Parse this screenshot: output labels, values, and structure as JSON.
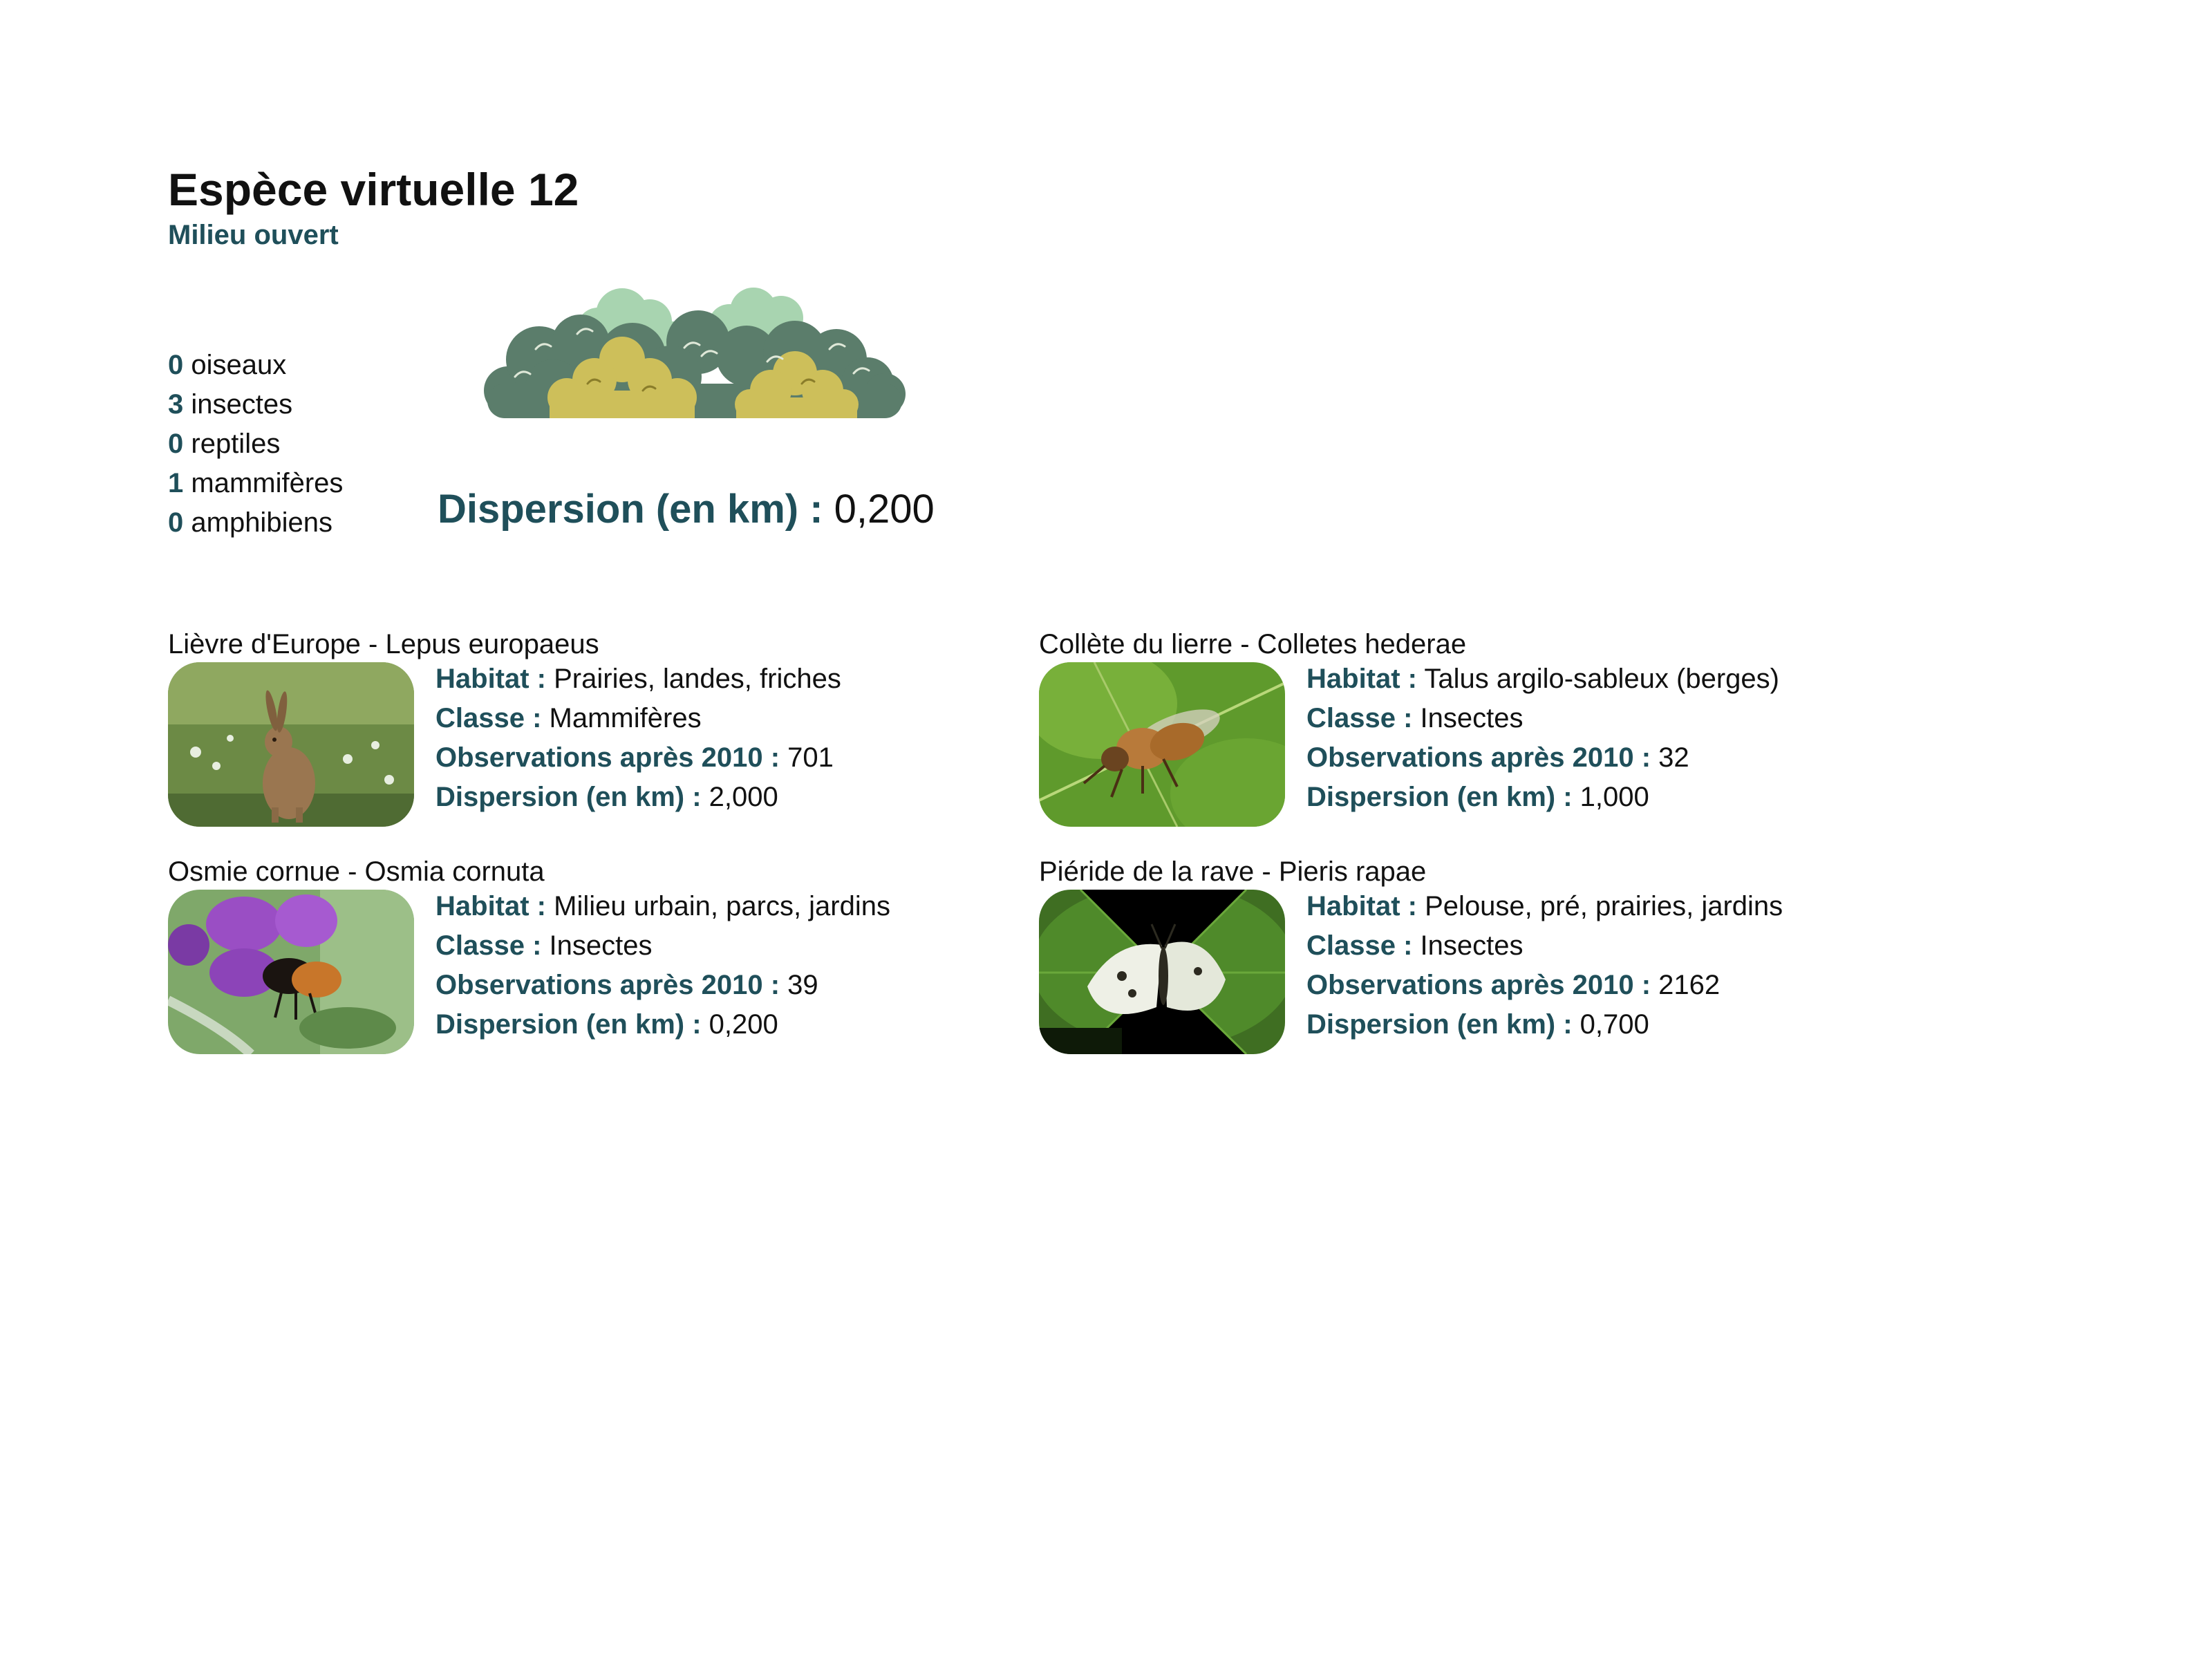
{
  "header": {
    "title": "Espèce virtuelle 12",
    "subtitle": "Milieu ouvert"
  },
  "counts": [
    {
      "value": "0",
      "label": "oiseaux"
    },
    {
      "value": "3",
      "label": "insectes"
    },
    {
      "value": "0",
      "label": "reptiles"
    },
    {
      "value": "1",
      "label": "mammifères"
    },
    {
      "value": "0",
      "label": "amphibiens"
    }
  ],
  "habitat_illustration": {
    "icon": "shrub-illustration",
    "colors": {
      "dark": "#5b7d6b",
      "light": "#a8d4b0",
      "yellow": "#cdbf5a"
    }
  },
  "dispersion": {
    "label": "Dispersion (en km) :",
    "value": "0,200"
  },
  "species": [
    {
      "name": "Lièvre d'Europe - Lepus europaeus",
      "photo": "hare-photo",
      "habitat_label": "Habitat :",
      "habitat": "Prairies, landes, friches",
      "classe_label": "Classe :",
      "classe": "Mammifères",
      "obs_label": "Observations après 2010 :",
      "obs": "701",
      "disp_label": "Dispersion (en km) :",
      "disp": "2,000"
    },
    {
      "name": "Collète du lierre - Colletes hederae",
      "photo": "bee-photo",
      "habitat_label": "Habitat :",
      "habitat": "Talus argilo-sableux (berges)",
      "classe_label": "Classe :",
      "classe": "Insectes",
      "obs_label": "Observations après 2010 :",
      "obs": "32",
      "disp_label": "Dispersion (en km) :",
      "disp": "1,000"
    },
    {
      "name": "Osmie cornue - Osmia cornuta",
      "photo": "osmia-photo",
      "habitat_label": "Habitat :",
      "habitat": "Milieu urbain, parcs, jardins",
      "classe_label": "Classe :",
      "classe": "Insectes",
      "obs_label": "Observations après 2010 :",
      "obs": "39",
      "disp_label": "Dispersion (en km) :",
      "disp": "0,200"
    },
    {
      "name": "Piéride de la rave - Pieris rapae",
      "photo": "butterfly-photo",
      "habitat_label": "Habitat :",
      "habitat": "Pelouse, pré, prairies, jardins",
      "classe_label": "Classe :",
      "classe": "Insectes",
      "obs_label": "Observations après 2010 :",
      "obs": "2162",
      "disp_label": "Dispersion (en km) :",
      "disp": "0,700"
    }
  ]
}
